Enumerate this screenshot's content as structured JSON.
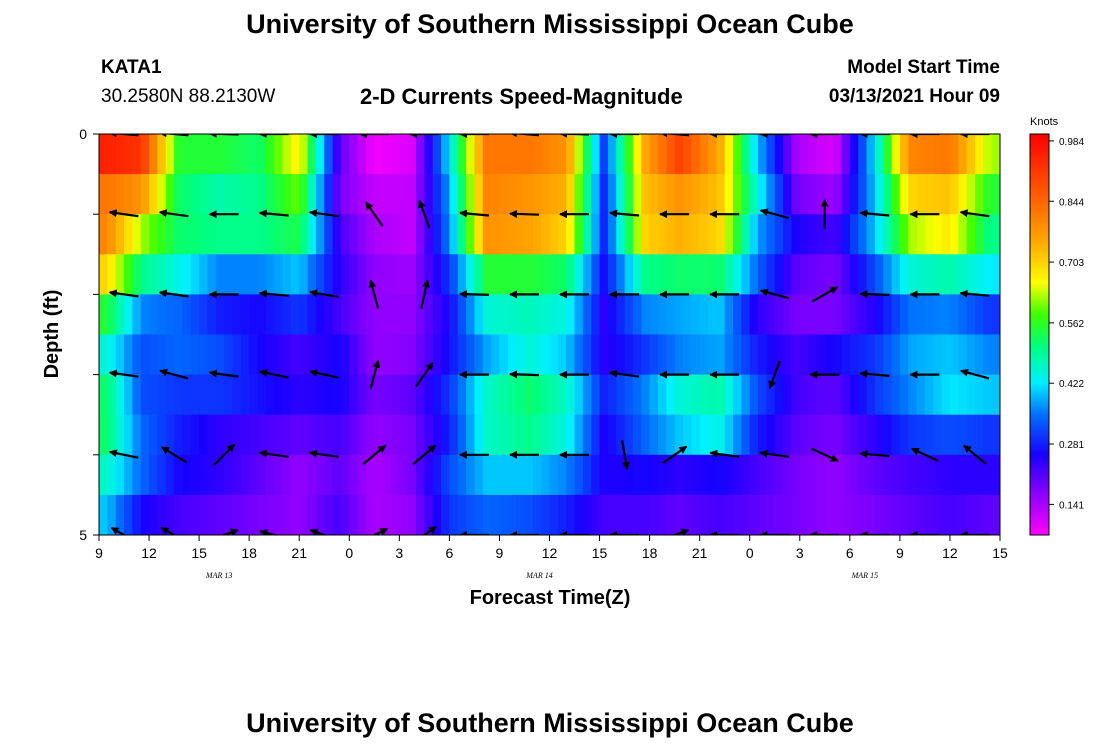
{
  "header": {
    "title": "University of Southern Mississippi Ocean Cube",
    "station_id": "KATA1",
    "station_coords": "30.2580N 88.2130W",
    "subtitle": "2-D Currents Speed-Magnitude",
    "model_start_label": "Model Start Time",
    "model_start_value": "03/13/2021 Hour 09"
  },
  "footer": {
    "title": "University of Southern Mississippi Ocean Cube"
  },
  "chart_data": {
    "type": "heatmap",
    "xlabel": "Forecast Time(Z)",
    "ylabel": "Depth (ft)",
    "x_tick_labels": [
      "9",
      "12",
      "15",
      "18",
      "21",
      "0",
      "3",
      "6",
      "9",
      "12",
      "15",
      "18",
      "21",
      "0",
      "3",
      "6",
      "9",
      "12",
      "15"
    ],
    "date_labels": [
      {
        "label": "MAR 13",
        "tick_index": 2.4
      },
      {
        "label": "MAR 14",
        "tick_index": 8.8
      },
      {
        "label": "MAR 15",
        "tick_index": 15.3
      }
    ],
    "y_tick_labels": [
      "0",
      "5"
    ],
    "y_range": [
      0,
      5
    ],
    "colorbar": {
      "unit": "Knots",
      "ticks": [
        "0.984",
        "0.844",
        "0.703",
        "0.562",
        "0.422",
        "0.281",
        "0.141"
      ],
      "range": [
        0.07,
        1.0
      ]
    },
    "columns": [
      0.15,
      0.85,
      1.6,
      2.4,
      3.2,
      4.0,
      4.8,
      5.5,
      6.25,
      7.0,
      7.75,
      8.6,
      9.35,
      10.1,
      10.9,
      11.6,
      12.4,
      13.15,
      13.95,
      14.7,
      15.5,
      16.2,
      17.0,
      17.8
    ],
    "speed_rows": [
      {
        "depth": 0.25,
        "values": [
          0.95,
          0.92,
          0.55,
          0.55,
          0.52,
          0.68,
          0.2,
          0.08,
          0.1,
          0.42,
          0.82,
          0.82,
          0.78,
          0.3,
          0.75,
          0.9,
          0.75,
          0.4,
          0.14,
          0.1,
          0.42,
          0.8,
          0.82,
          0.62
        ]
      },
      {
        "depth": 0.75,
        "values": [
          0.82,
          0.78,
          0.52,
          0.48,
          0.5,
          0.6,
          0.18,
          0.12,
          0.12,
          0.38,
          0.8,
          0.78,
          0.74,
          0.28,
          0.72,
          0.78,
          0.72,
          0.45,
          0.18,
          0.15,
          0.4,
          0.7,
          0.72,
          0.55
        ]
      },
      {
        "depth": 1.25,
        "values": [
          0.8,
          0.62,
          0.52,
          0.5,
          0.5,
          0.54,
          0.22,
          0.14,
          0.12,
          0.36,
          0.78,
          0.76,
          0.7,
          0.28,
          0.7,
          0.74,
          0.7,
          0.38,
          0.25,
          0.22,
          0.4,
          0.62,
          0.68,
          0.5
        ]
      },
      {
        "depth": 1.75,
        "values": [
          0.7,
          0.5,
          0.44,
          0.36,
          0.36,
          0.4,
          0.24,
          0.16,
          0.15,
          0.3,
          0.55,
          0.55,
          0.52,
          0.26,
          0.5,
          0.52,
          0.52,
          0.34,
          0.2,
          0.18,
          0.32,
          0.45,
          0.48,
          0.42
        ]
      },
      {
        "depth": 2.25,
        "values": [
          0.55,
          0.36,
          0.34,
          0.28,
          0.26,
          0.3,
          0.22,
          0.16,
          0.16,
          0.26,
          0.45,
          0.47,
          0.44,
          0.24,
          0.36,
          0.38,
          0.4,
          0.24,
          0.18,
          0.18,
          0.25,
          0.35,
          0.36,
          0.3
        ]
      },
      {
        "depth": 2.75,
        "values": [
          0.45,
          0.32,
          0.34,
          0.32,
          0.26,
          0.22,
          0.26,
          0.16,
          0.17,
          0.27,
          0.38,
          0.45,
          0.4,
          0.24,
          0.3,
          0.36,
          0.38,
          0.28,
          0.22,
          0.26,
          0.3,
          0.38,
          0.4,
          0.36
        ]
      },
      {
        "depth": 3.25,
        "values": [
          0.52,
          0.32,
          0.3,
          0.3,
          0.27,
          0.24,
          0.26,
          0.18,
          0.2,
          0.3,
          0.46,
          0.52,
          0.46,
          0.28,
          0.36,
          0.45,
          0.48,
          0.32,
          0.22,
          0.2,
          0.3,
          0.36,
          0.42,
          0.4
        ]
      },
      {
        "depth": 3.75,
        "values": [
          0.52,
          0.34,
          0.28,
          0.24,
          0.22,
          0.2,
          0.22,
          0.16,
          0.18,
          0.28,
          0.46,
          0.5,
          0.44,
          0.25,
          0.34,
          0.4,
          0.44,
          0.28,
          0.2,
          0.18,
          0.24,
          0.3,
          0.32,
          0.3
        ]
      },
      {
        "depth": 4.25,
        "values": [
          0.46,
          0.34,
          0.26,
          0.24,
          0.2,
          0.16,
          0.2,
          0.14,
          0.18,
          0.32,
          0.4,
          0.4,
          0.36,
          0.25,
          0.26,
          0.24,
          0.26,
          0.22,
          0.18,
          0.16,
          0.2,
          0.22,
          0.24,
          0.24
        ]
      },
      {
        "depth": 4.75,
        "values": [
          0.4,
          0.26,
          0.22,
          0.2,
          0.18,
          0.16,
          0.22,
          0.14,
          0.16,
          0.3,
          0.34,
          0.32,
          0.28,
          0.22,
          0.22,
          0.2,
          0.22,
          0.2,
          0.18,
          0.16,
          0.18,
          0.2,
          0.22,
          0.2
        ]
      }
    ],
    "arrow_rows": [
      0.0,
      1.0,
      2.0,
      3.0,
      4.0,
      5.0
    ],
    "arrow_columns": [
      0.5,
      1.5,
      2.5,
      3.5,
      4.5,
      5.5,
      6.5,
      7.5,
      8.5,
      9.5,
      10.5,
      11.5,
      12.5,
      13.5,
      14.5,
      15.5,
      16.5,
      17.5
    ],
    "arrow_angles": [
      [
        175,
        175,
        178,
        180,
        180,
        180,
        180,
        180,
        175,
        178,
        180,
        175,
        180,
        180,
        180,
        180,
        180,
        180
      ],
      [
        172,
        172,
        180,
        175,
        172,
        125,
        110,
        175,
        178,
        180,
        175,
        180,
        180,
        165,
        90,
        175,
        180,
        172
      ],
      [
        172,
        172,
        180,
        175,
        170,
        105,
        78,
        178,
        180,
        180,
        180,
        180,
        180,
        165,
        30,
        178,
        180,
        175
      ],
      [
        172,
        165,
        172,
        168,
        168,
        75,
        55,
        180,
        178,
        180,
        172,
        180,
        180,
        250,
        180,
        175,
        180,
        165
      ],
      [
        168,
        148,
        45,
        172,
        172,
        40,
        40,
        180,
        180,
        180,
        280,
        35,
        172,
        172,
        335,
        175,
        155,
        140
      ],
      [
        150,
        150,
        20,
        165,
        160,
        25,
        35,
        180,
        180,
        180,
        180,
        20,
        180,
        180,
        180,
        180,
        180,
        180
      ]
    ]
  }
}
